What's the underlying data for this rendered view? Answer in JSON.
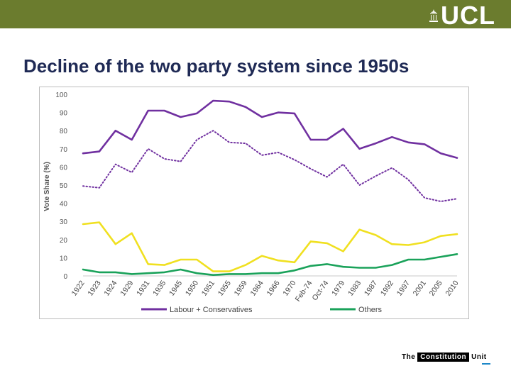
{
  "header": {
    "logo_text": "UCL",
    "bar_color": "#6b7c2e"
  },
  "slide": {
    "title": "Decline of the two party system since 1950s"
  },
  "footer": {
    "the": "The",
    "constitution": "Constitution",
    "unit": "Unit"
  },
  "chart_data": {
    "type": "line",
    "ylabel": "Vote Share (%)",
    "xlabel": "",
    "ylim": [
      0,
      100
    ],
    "yticks": [
      0,
      10,
      20,
      30,
      40,
      50,
      60,
      70,
      80,
      90,
      100
    ],
    "categories": [
      "1922",
      "1923",
      "1924",
      "1929",
      "1931",
      "1935",
      "1945",
      "1950",
      "1951",
      "1955",
      "1959",
      "1964",
      "1966",
      "1970",
      "Feb-74",
      "Oct-74",
      "1979",
      "1983",
      "1987",
      "1992",
      "1997",
      "2001",
      "2005",
      "2010"
    ],
    "series": [
      {
        "name": "Labour + Conservatives",
        "color": "#7030a0",
        "style": "solid",
        "values": [
          67.5,
          68.5,
          80,
          75,
          91,
          91,
          87.5,
          89.5,
          96.5,
          96,
          93,
          87.5,
          90,
          89.5,
          75,
          75,
          81,
          70,
          73,
          76.5,
          73.5,
          72.5,
          67.5,
          65
        ]
      },
      {
        "name": "",
        "color": "#7030a0",
        "style": "dotted",
        "values": [
          49.5,
          48.5,
          61.5,
          57,
          70,
          64.5,
          63,
          75,
          80,
          73.5,
          73,
          66.5,
          68,
          64,
          59,
          54.5,
          61.5,
          50,
          55,
          59.5,
          53,
          43,
          41,
          42.5
        ]
      },
      {
        "name": "",
        "color": "#f0e020",
        "style": "solid",
        "values": [
          28.5,
          29.5,
          17.5,
          23.5,
          6.5,
          6,
          9,
          9,
          2.5,
          2.5,
          6,
          11,
          8.5,
          7.5,
          19,
          18,
          13.5,
          25.5,
          22.5,
          17.5,
          17,
          18.5,
          22,
          23
        ]
      },
      {
        "name": "Others",
        "color": "#1aa25a",
        "style": "solid",
        "values": [
          3.5,
          2,
          2,
          1,
          1.5,
          2,
          3.5,
          1.5,
          0.5,
          1,
          1,
          1.5,
          1.5,
          3,
          5.5,
          6.5,
          5,
          4.5,
          4.5,
          6,
          9,
          9,
          10.5,
          12
        ]
      }
    ],
    "legend": {
      "placement": "bottom"
    },
    "grid": false
  }
}
